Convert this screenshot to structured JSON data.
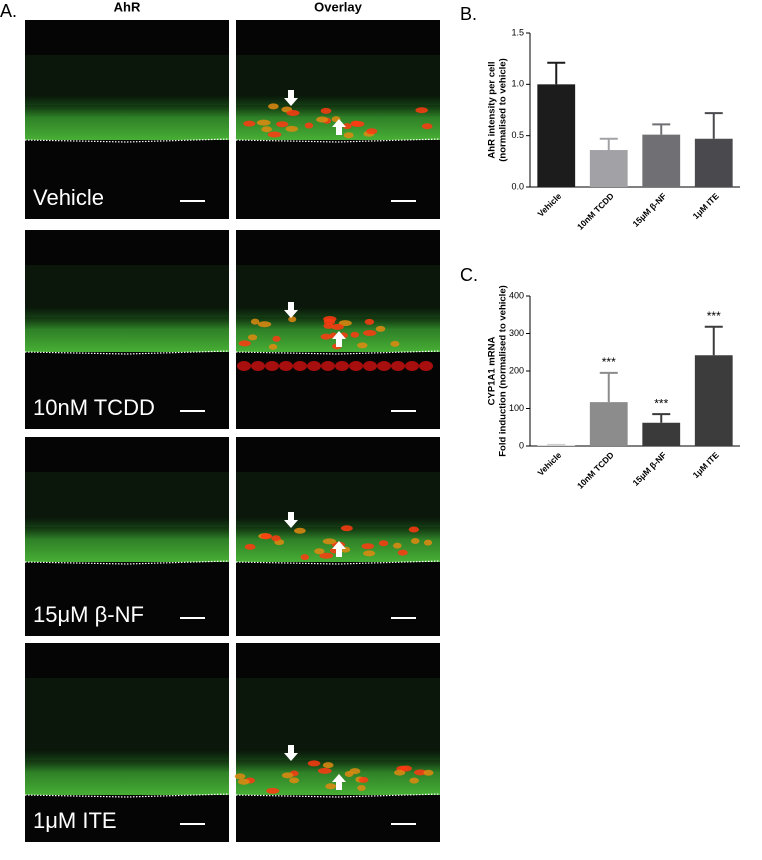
{
  "panel_a": {
    "label": "A.",
    "columns": [
      "AhR",
      "Overlay"
    ],
    "rows": [
      "Vehicle",
      "10nM TCDD",
      "15μM β-NF",
      "1μM ITE"
    ]
  },
  "chart_data": [
    {
      "type": "bar",
      "title": "B.",
      "ylabel": [
        "AhR intensity per cell",
        "(normalised to vehicle)"
      ],
      "categories": [
        "Vehicle",
        "10nM TCDD",
        "15μM β-NF",
        "1μM ITE"
      ],
      "values": [
        1.0,
        0.36,
        0.51,
        0.47
      ],
      "errors": [
        0.21,
        0.11,
        0.1,
        0.25
      ],
      "colors": [
        "#1c1c1c",
        "#a2a2a6",
        "#707074",
        "#4a4a4e"
      ],
      "ylim": [
        0,
        1.5
      ],
      "yticks": [
        {
          "value": 0,
          "label": "0.0"
        },
        0.5,
        {
          "value": 1,
          "label": "1.0"
        },
        1.5
      ]
    },
    {
      "type": "bar",
      "title": "C.",
      "ylabel": [
        "CYP1A1 mRNA",
        "Fold induction (normalised to vehicle)"
      ],
      "categories": [
        "Vehicle",
        "10nM TCDD",
        "15μM β-NF",
        "1μM ITE"
      ],
      "values": [
        2,
        117,
        62,
        242
      ],
      "errors": [
        1,
        78,
        23,
        76
      ],
      "colors": [
        "#d0d0d0",
        "#8c8c8c",
        "#3a3a3a",
        "#3c3c3c"
      ],
      "annotations": [
        null,
        "***",
        "***",
        "***"
      ],
      "ylim": [
        0,
        400
      ],
      "yticks": [
        0,
        100,
        200,
        300,
        400
      ]
    }
  ]
}
